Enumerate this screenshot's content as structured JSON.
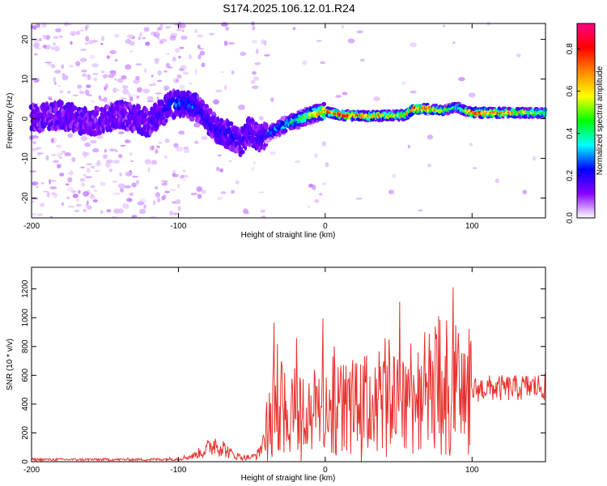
{
  "chart_data": [
    {
      "type": "heatmap",
      "title": "S174.2025.106.12.01.R24",
      "xlabel": "Height of straight line (km)",
      "ylabel": "Frequency (Hz)",
      "xlim": [
        -200,
        150
      ],
      "ylim": [
        -25,
        24
      ],
      "xticks": [
        -200,
        -100,
        0,
        100
      ],
      "yticks": [
        -20,
        -10,
        0,
        10,
        20
      ],
      "grid": false,
      "ridge_frequency": {
        "x": [
          -200,
          -180,
          -160,
          -140,
          -120,
          -105,
          -95,
          -85,
          -75,
          -65,
          -58,
          -52,
          -45,
          -38,
          -30,
          -20,
          -10,
          0,
          10,
          20,
          30,
          40,
          50,
          55,
          60,
          70,
          80,
          85,
          90,
          95,
          100,
          110,
          120,
          130,
          140,
          150
        ],
        "y": [
          0.0,
          1.0,
          -1.0,
          1.0,
          -1.0,
          3.5,
          4.0,
          2.0,
          -2.5,
          -4.0,
          -6.0,
          -3.0,
          -5.0,
          -3.5,
          -2.0,
          -0.5,
          1.0,
          1.8,
          1.0,
          0.8,
          0.6,
          0.8,
          0.8,
          1.0,
          2.5,
          2.5,
          2.0,
          2.5,
          3.0,
          2.0,
          1.5,
          1.5,
          1.5,
          1.5,
          1.5,
          1.5
        ]
      },
      "ridge_amplitude": [
        0.12,
        0.12,
        0.12,
        0.12,
        0.13,
        0.25,
        0.3,
        0.25,
        0.22,
        0.22,
        0.2,
        0.18,
        0.2,
        0.28,
        0.35,
        0.45,
        0.6,
        0.75,
        0.88,
        0.85,
        0.8,
        0.7,
        0.65,
        0.7,
        0.88,
        0.88,
        0.55,
        0.45,
        0.5,
        0.6,
        0.85,
        0.88,
        0.8,
        0.7,
        0.6,
        0.55
      ],
      "colorbar": {
        "label": "Normalized spectral amplitude",
        "range": [
          0.0,
          0.92
        ],
        "ticks": [
          0.0,
          0.2,
          0.4,
          0.6,
          0.8
        ],
        "tick_labels": [
          "0.0",
          "0.2",
          "0.4",
          "0.6",
          "0.8"
        ],
        "colors": [
          "#ffffff",
          "#8800ff",
          "#0000ff",
          "#00ffff",
          "#00ff00",
          "#ffff00",
          "#ff8800",
          "#ff0000",
          "#ff0088"
        ]
      }
    },
    {
      "type": "line",
      "xlabel": "Height of straight line (km)",
      "ylabel": "SNR (10 * v/v)",
      "xlim": [
        -200,
        150
      ],
      "ylim": [
        0,
        1350
      ],
      "xticks": [
        -200,
        -100,
        0,
        100
      ],
      "yticks": [
        0,
        200,
        400,
        600,
        800,
        1000,
        1200
      ],
      "grid": false,
      "line_color": "#e8322e",
      "series": [
        {
          "x": [
            -200,
            -180,
            -160,
            -140,
            -120,
            -100,
            -90,
            -80,
            -75,
            -70,
            -65,
            -60,
            -55,
            -50,
            -45,
            -40,
            -35,
            -30,
            -20,
            -10,
            0,
            10,
            20,
            30,
            40,
            50,
            60,
            70,
            80,
            90,
            95,
            100,
            110,
            120,
            130,
            140,
            150
          ],
          "y": [
            15,
            15,
            15,
            15,
            15,
            20,
            40,
            90,
            130,
            100,
            60,
            40,
            30,
            30,
            60,
            220,
            400,
            380,
            360,
            330,
            400,
            380,
            380,
            400,
            450,
            470,
            480,
            480,
            560,
            500,
            480,
            500,
            510,
            510,
            510,
            520,
            520
          ]
        }
      ]
    }
  ]
}
